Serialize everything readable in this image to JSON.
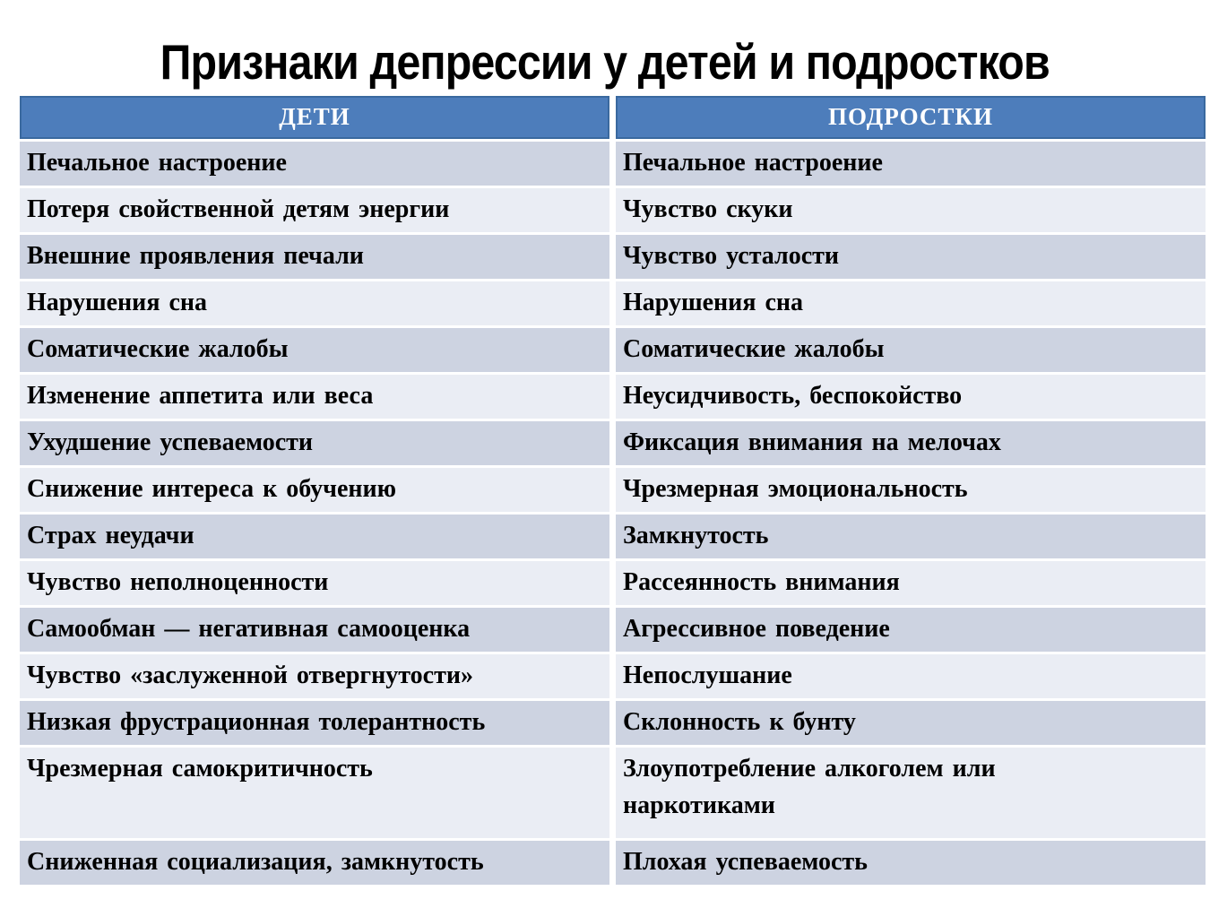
{
  "title": "Признаки депрессии у детей и подростков",
  "table": {
    "headers": [
      "ДЕТИ",
      "ПОДРОСТКИ"
    ],
    "rows": [
      [
        "Печальное настроение",
        "Печальное настроение"
      ],
      [
        "Потеря свойственной детям энергии",
        "Чувство скуки"
      ],
      [
        "Внешние проявления печали",
        "Чувство усталости"
      ],
      [
        "Нарушения сна",
        "Нарушения сна"
      ],
      [
        "Соматические жалобы",
        "Соматические жалобы"
      ],
      [
        "Изменение аппетита или веса",
        "Неусидчивость, беспокойство"
      ],
      [
        "Ухудшение успеваемости",
        "Фиксация внимания на мелочах"
      ],
      [
        "Снижение интереса к обучению",
        "Чрезмерная эмоциональность"
      ],
      [
        "Страх неудачи",
        "Замкнутость"
      ],
      [
        "Чувство неполноценности",
        "Рассеянность внимания"
      ],
      [
        "Самообман — негативная самооценка",
        "Агрессивное поведение"
      ],
      [
        "Чувство «заслуженной отвергнутости»",
        "Непослушание"
      ],
      [
        "Низкая фрустрационная толерантность",
        "Склонность к бунту"
      ],
      [
        "Чрезмерная самокритичность",
        "Злоупотребление алкоголем или\nнаркотиками"
      ],
      [
        "Сниженная социализация, замкнутость",
        "Плохая успеваемость"
      ]
    ]
  },
  "colors": {
    "header_bg": "#4d7dbb",
    "header_border": "#3a699f",
    "row_dark": "#cdd3e1",
    "row_light": "#eaedf4",
    "header_text": "#ffffff",
    "body_text": "#000000",
    "page_bg": "#ffffff"
  }
}
